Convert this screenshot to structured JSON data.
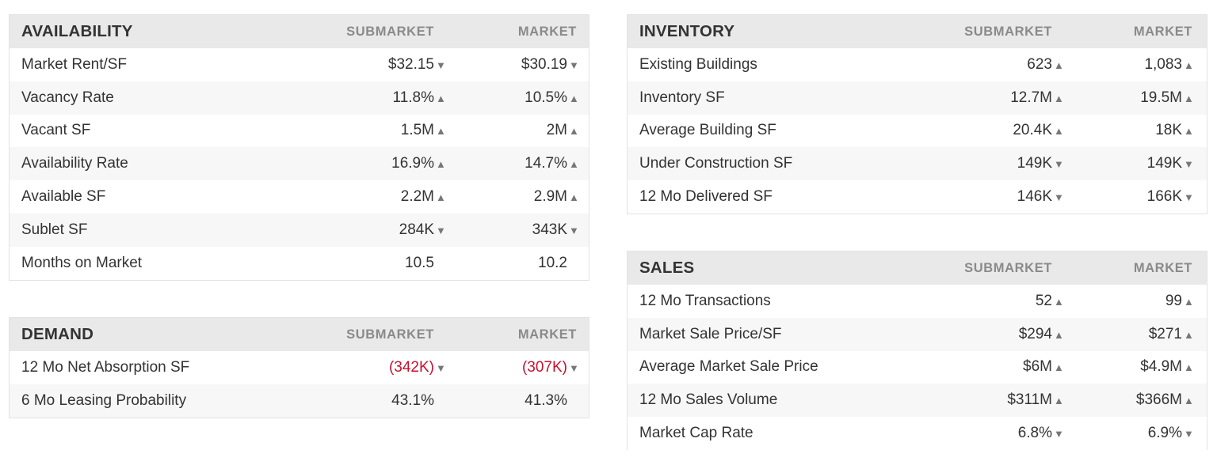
{
  "availability": {
    "title": "AVAILABILITY",
    "col_sub": "SUBMARKET",
    "col_mkt": "MARKET",
    "rows": [
      {
        "label": "Market Rent/SF",
        "sub": "$32.15",
        "sub_dir": "down",
        "mkt": "$30.19",
        "mkt_dir": "down"
      },
      {
        "label": "Vacancy Rate",
        "sub": "11.8%",
        "sub_dir": "up",
        "mkt": "10.5%",
        "mkt_dir": "up"
      },
      {
        "label": "Vacant SF",
        "sub": "1.5M",
        "sub_dir": "up",
        "mkt": "2M",
        "mkt_dir": "up"
      },
      {
        "label": "Availability Rate",
        "sub": "16.9%",
        "sub_dir": "up",
        "mkt": "14.7%",
        "mkt_dir": "up"
      },
      {
        "label": "Available SF",
        "sub": "2.2M",
        "sub_dir": "up",
        "mkt": "2.9M",
        "mkt_dir": "up"
      },
      {
        "label": "Sublet SF",
        "sub": "284K",
        "sub_dir": "down",
        "mkt": "343K",
        "mkt_dir": "down"
      },
      {
        "label": "Months on Market",
        "sub": "10.5",
        "sub_dir": "",
        "mkt": "10.2",
        "mkt_dir": ""
      }
    ]
  },
  "demand": {
    "title": "DEMAND",
    "col_sub": "SUBMARKET",
    "col_mkt": "MARKET",
    "rows": [
      {
        "label": "12 Mo Net Absorption SF",
        "sub": "(342K)",
        "sub_dir": "down",
        "mkt": "(307K)",
        "mkt_dir": "down",
        "negative": true
      },
      {
        "label": "6 Mo Leasing Probability",
        "sub": "43.1%",
        "sub_dir": "",
        "mkt": "41.3%",
        "mkt_dir": ""
      }
    ]
  },
  "inventory": {
    "title": "INVENTORY",
    "col_sub": "SUBMARKET",
    "col_mkt": "MARKET",
    "rows": [
      {
        "label": "Existing Buildings",
        "sub": "623",
        "sub_dir": "up",
        "mkt": "1,083",
        "mkt_dir": "up"
      },
      {
        "label": "Inventory SF",
        "sub": "12.7M",
        "sub_dir": "up",
        "mkt": "19.5M",
        "mkt_dir": "up"
      },
      {
        "label": "Average Building SF",
        "sub": "20.4K",
        "sub_dir": "up",
        "mkt": "18K",
        "mkt_dir": "up"
      },
      {
        "label": "Under Construction SF",
        "sub": "149K",
        "sub_dir": "down",
        "mkt": "149K",
        "mkt_dir": "down"
      },
      {
        "label": "12 Mo Delivered SF",
        "sub": "146K",
        "sub_dir": "down",
        "mkt": "166K",
        "mkt_dir": "down"
      }
    ]
  },
  "sales": {
    "title": "SALES",
    "col_sub": "SUBMARKET",
    "col_mkt": "MARKET",
    "rows": [
      {
        "label": "12 Mo Transactions",
        "sub": "52",
        "sub_dir": "up",
        "mkt": "99",
        "mkt_dir": "up"
      },
      {
        "label": "Market Sale Price/SF",
        "sub": "$294",
        "sub_dir": "up",
        "mkt": "$271",
        "mkt_dir": "up"
      },
      {
        "label": "Average Market Sale Price",
        "sub": "$6M",
        "sub_dir": "up",
        "mkt": "$4.9M",
        "mkt_dir": "up"
      },
      {
        "label": "12 Mo Sales Volume",
        "sub": "$311M",
        "sub_dir": "up",
        "mkt": "$366M",
        "mkt_dir": "up"
      },
      {
        "label": "Market Cap Rate",
        "sub": "6.8%",
        "sub_dir": "down",
        "mkt": "6.9%",
        "mkt_dir": "down"
      }
    ]
  },
  "arrows": {
    "up": "▲",
    "down": "▼"
  },
  "colors": {
    "negative": "#c8102e",
    "header_bg": "#e9e9e9",
    "alt_row_bg": "#f7f7f7"
  }
}
